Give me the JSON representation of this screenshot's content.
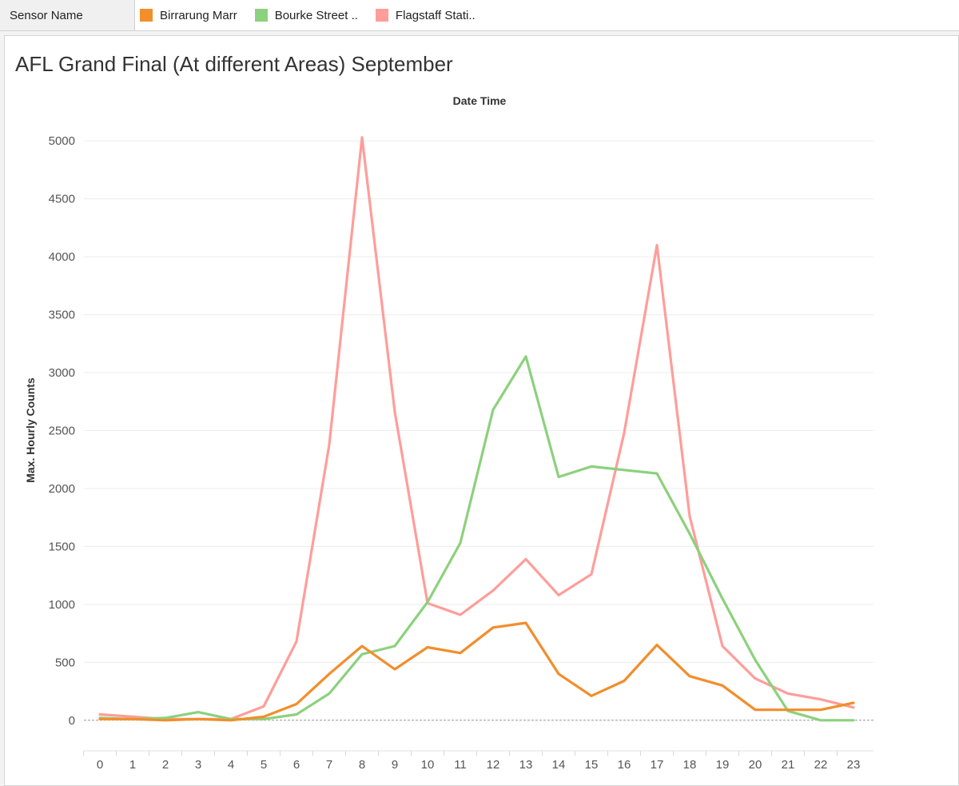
{
  "legend": {
    "field_label": "Sensor Name",
    "items": [
      {
        "label": "Birrarung Marr",
        "color": "#f28e2b"
      },
      {
        "label": "Bourke Street ..",
        "color": "#8cd17d"
      },
      {
        "label": "Flagstaff Stati..",
        "color": "#ff9d9a"
      }
    ]
  },
  "chart_data": {
    "type": "line",
    "title": "AFL Grand Final (At different Areas) September",
    "xlabel": "Date Time",
    "ylabel": "Max. Hourly Counts",
    "ylim": [
      -250,
      5250
    ],
    "yticks": [
      0,
      500,
      1000,
      1500,
      2000,
      2500,
      3000,
      3500,
      4000,
      4500,
      5000
    ],
    "x": [
      0,
      1,
      2,
      3,
      4,
      5,
      6,
      7,
      8,
      9,
      10,
      11,
      12,
      13,
      14,
      15,
      16,
      17,
      18,
      19,
      20,
      21,
      22,
      23
    ],
    "grid": true,
    "series": [
      {
        "name": "Flagstaff Stati..",
        "color": "#ff9d9a",
        "values": [
          50,
          30,
          10,
          10,
          10,
          120,
          680,
          2380,
          5030,
          2660,
          1010,
          910,
          1120,
          1390,
          1080,
          1260,
          2480,
          4100,
          1760,
          640,
          360,
          230,
          180,
          110
        ]
      },
      {
        "name": "Bourke Street ..",
        "color": "#8cd17d",
        "values": [
          20,
          10,
          20,
          70,
          10,
          10,
          50,
          230,
          570,
          640,
          1020,
          1530,
          2680,
          3140,
          2100,
          2190,
          2160,
          2130,
          1610,
          1050,
          520,
          80,
          0,
          0
        ]
      },
      {
        "name": "Birrarung Marr",
        "color": "#f28e2b",
        "values": [
          10,
          10,
          0,
          10,
          0,
          30,
          140,
          400,
          640,
          440,
          630,
          580,
          800,
          840,
          400,
          210,
          340,
          650,
          380,
          300,
          90,
          90,
          90,
          150
        ]
      }
    ]
  }
}
